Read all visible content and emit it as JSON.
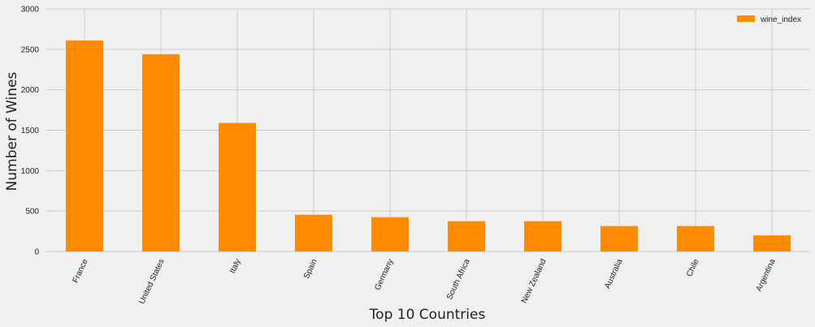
{
  "chart_data": {
    "type": "bar",
    "title": "",
    "xlabel": "Top 10 Countries",
    "ylabel": "Number of Wines",
    "categories": [
      "France",
      "United States",
      "Italy",
      "Spain",
      "Germany",
      "South Africa",
      "New Zealand",
      "Australia",
      "Chile",
      "Argentina"
    ],
    "series": [
      {
        "name": "wine_index",
        "values": [
          2610,
          2440,
          1590,
          455,
          425,
          375,
          375,
          315,
          315,
          200
        ],
        "color": "#ff8c00"
      }
    ],
    "ylim": [
      0,
      3000
    ],
    "yticks": [
      0,
      500,
      1000,
      1500,
      2000,
      2500,
      3000
    ],
    "grid": true,
    "legend_position": "top-right",
    "background": "#f0f0f0",
    "grid_color": "#cbcbcb"
  }
}
